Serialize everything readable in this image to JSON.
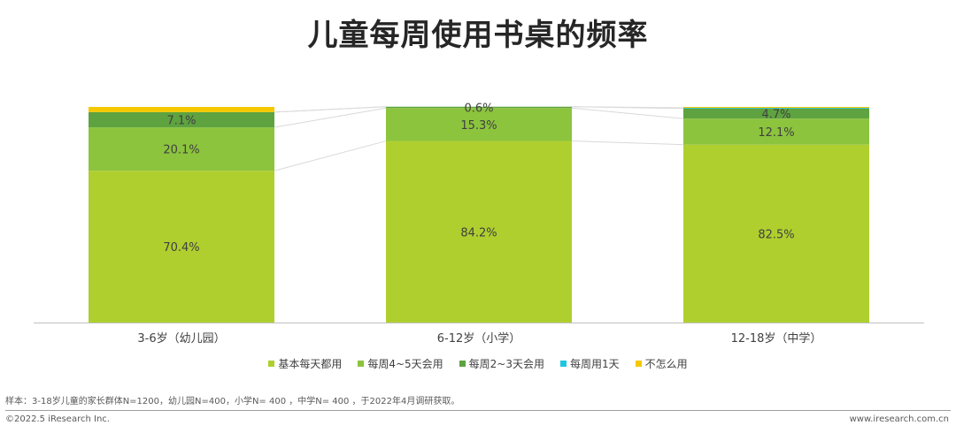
{
  "title": "儿童每周使用书桌的频率",
  "chart_data": {
    "type": "bar",
    "stacked": true,
    "percent": true,
    "categories": [
      "3-6岁（幼儿园）",
      "6-12岁（小学）",
      "12-18岁（中学）"
    ],
    "series": [
      {
        "name": "基本每天都用",
        "color": "#AFCF2F",
        "values": [
          70.4,
          84.2,
          82.5
        ],
        "labels": [
          "70.4%",
          "84.2%",
          "82.5%"
        ]
      },
      {
        "name": "每周4~5天会用",
        "color": "#8CC43E",
        "values": [
          20.1,
          15.3,
          12.1
        ],
        "labels": [
          "20.1%",
          "15.3%",
          "12.1%"
        ]
      },
      {
        "name": "每周2~3天会用",
        "color": "#5EA33F",
        "values": [
          7.1,
          0.6,
          4.7
        ],
        "labels": [
          "7.1%",
          "0.6%",
          "4.7%"
        ]
      },
      {
        "name": "每周用1天",
        "color": "#1EC5E0",
        "values": [
          0.0,
          0.0,
          0.3
        ],
        "labels": [
          "",
          "",
          ""
        ]
      },
      {
        "name": "不怎么用",
        "color": "#F5C900",
        "values": [
          2.4,
          0.0,
          0.4
        ],
        "labels": [
          "",
          "",
          ""
        ]
      }
    ],
    "ylim": [
      0,
      100
    ],
    "legend_position": "bottom"
  },
  "note": "样本：3-18岁儿童的家长群体N=1200，幼儿园N=400，小学N= 400 ，中学N= 400 ，于2022年4月调研获取。",
  "footer": {
    "left": "©2022.5 iResearch Inc.",
    "right": "www.iresearch.com.cn"
  }
}
